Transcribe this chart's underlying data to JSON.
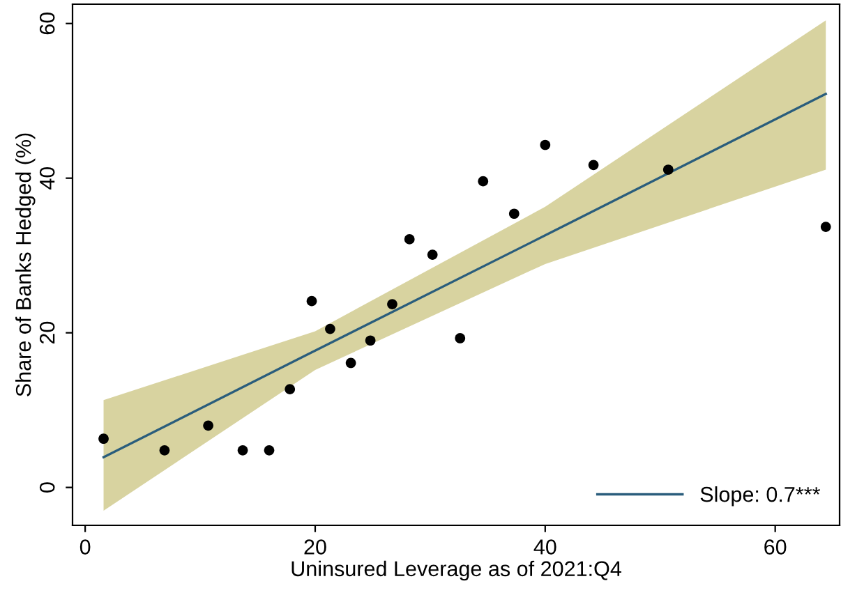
{
  "chart_data": {
    "type": "scatter",
    "xlabel": "Uninsured Leverage as of 2021:Q4",
    "ylabel": "Share of Banks Hedged (%)",
    "xlim": [
      -1.1,
      65.6
    ],
    "ylim": [
      -4.9,
      62.5
    ],
    "xticks": [
      0,
      20,
      40,
      60
    ],
    "yticks": [
      0,
      20,
      40,
      60
    ],
    "grid": false,
    "legend": "bottom right",
    "series": [
      {
        "marker": "circle",
        "color": "#000000",
        "x": [
          1.6,
          6.9,
          10.7,
          13.7,
          16.0,
          17.8,
          19.7,
          21.3,
          23.1,
          24.8,
          26.7,
          28.2,
          30.2,
          32.6,
          34.6,
          37.3,
          40.0,
          44.2,
          50.7,
          64.4
        ],
        "values": [
          6.3,
          4.8,
          8.0,
          4.8,
          4.8,
          12.7,
          24.1,
          20.5,
          16.1,
          19.0,
          23.7,
          32.1,
          30.1,
          19.3,
          39.6,
          35.4,
          44.3,
          41.7,
          41.1,
          33.7
        ]
      },
      {
        "type": "line",
        "name": "Slope: 0.7***",
        "color": "#2a5d7c",
        "x": [
          1.6,
          20,
          40,
          64.4
        ],
        "values": [
          3.9,
          17.7,
          32.6,
          50.9
        ],
        "lower": [
          -3.0,
          15.2,
          28.9,
          41.1
        ],
        "upper": [
          11.3,
          20.2,
          36.3,
          60.4
        ]
      }
    ]
  }
}
